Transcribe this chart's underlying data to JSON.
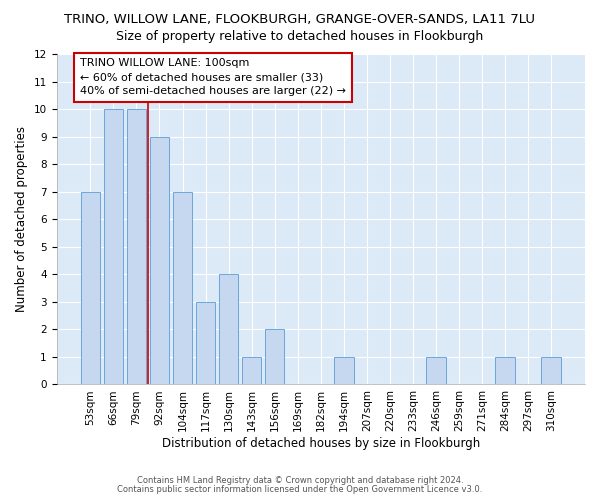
{
  "title": "TRINO, WILLOW LANE, FLOOKBURGH, GRANGE-OVER-SANDS, LA11 7LU",
  "subtitle": "Size of property relative to detached houses in Flookburgh",
  "xlabel": "Distribution of detached houses by size in Flookburgh",
  "ylabel": "Number of detached properties",
  "categories": [
    "53sqm",
    "66sqm",
    "79sqm",
    "92sqm",
    "104sqm",
    "117sqm",
    "130sqm",
    "143sqm",
    "156sqm",
    "169sqm",
    "182sqm",
    "194sqm",
    "207sqm",
    "220sqm",
    "233sqm",
    "246sqm",
    "259sqm",
    "271sqm",
    "284sqm",
    "297sqm",
    "310sqm"
  ],
  "values": [
    7,
    10,
    10,
    9,
    7,
    3,
    4,
    1,
    2,
    0,
    0,
    1,
    0,
    0,
    0,
    1,
    0,
    0,
    1,
    0,
    1
  ],
  "bar_color": "#c5d8f0",
  "bar_edge_color": "#5b9bd5",
  "vline_x": 2.5,
  "vline_color": "#cc0000",
  "ylim": [
    0,
    12
  ],
  "yticks": [
    0,
    1,
    2,
    3,
    4,
    5,
    6,
    7,
    8,
    9,
    10,
    11,
    12
  ],
  "annotation_text": "TRINO WILLOW LANE: 100sqm\n← 60% of detached houses are smaller (33)\n40% of semi-detached houses are larger (22) →",
  "annotation_box_facecolor": "#ffffff",
  "annotation_box_edgecolor": "#cc0000",
  "footer_line1": "Contains HM Land Registry data © Crown copyright and database right 2024.",
  "footer_line2": "Contains public sector information licensed under the Open Government Licence v3.0.",
  "bg_color": "#dce9f7",
  "title_fontsize": 9.5,
  "subtitle_fontsize": 9,
  "tick_fontsize": 7.5,
  "ylabel_fontsize": 8.5,
  "xlabel_fontsize": 8.5,
  "annotation_fontsize": 8,
  "footer_fontsize": 6
}
